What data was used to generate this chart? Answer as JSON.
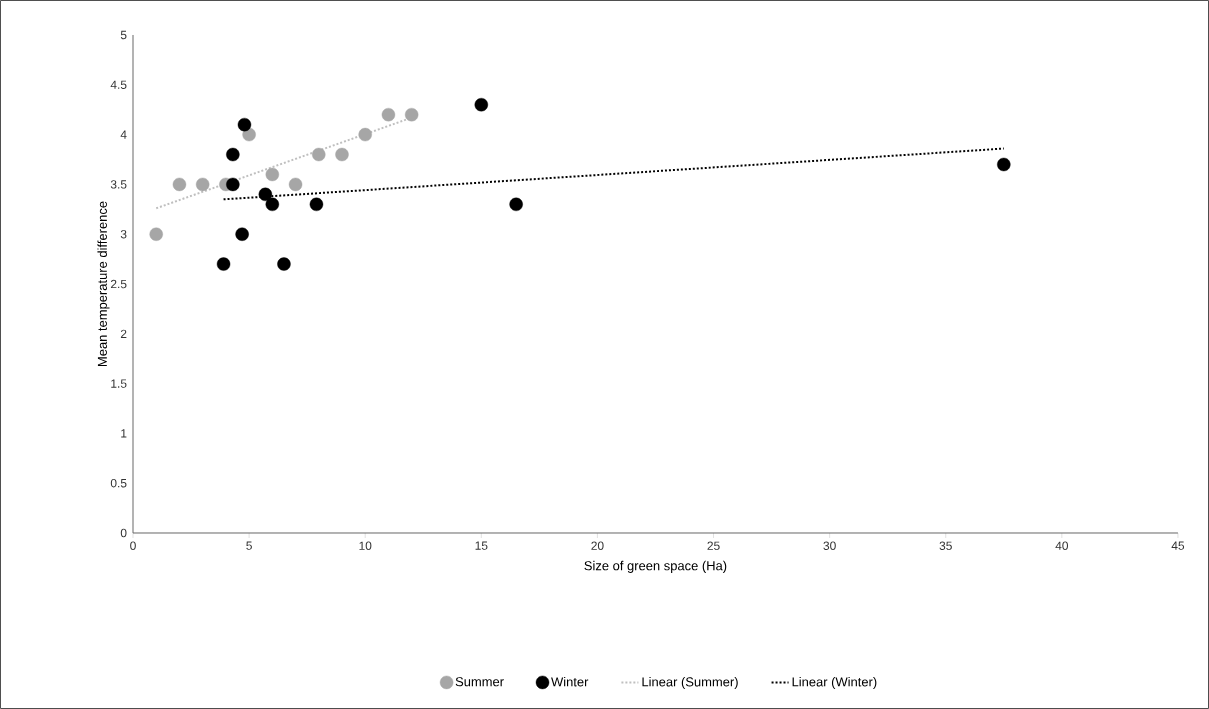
{
  "chart_data": {
    "type": "scatter",
    "xlabel": "Size of green space (Ha)",
    "ylabel": "Mean temperature difference",
    "xlim": [
      0,
      45
    ],
    "xticks": [
      0,
      5,
      10,
      15,
      20,
      25,
      30,
      35,
      40,
      45
    ],
    "ylim": [
      0,
      5
    ],
    "yticks": [
      0,
      0.5,
      1,
      1.5,
      2,
      2.5,
      3,
      3.5,
      4,
      4.5,
      5
    ],
    "grid": false,
    "legend": "bottom",
    "marker": "circle",
    "series": [
      {
        "name": "Summer",
        "color": "#a6a6a6",
        "x": [
          1,
          2,
          3,
          4,
          5,
          6,
          7,
          8,
          9,
          10,
          11,
          12
        ],
        "values": [
          3.0,
          3.5,
          3.5,
          3.5,
          4.0,
          3.6,
          3.5,
          3.8,
          3.8,
          4.0,
          4.2,
          4.2
        ]
      },
      {
        "name": "Winter",
        "color": "#000000",
        "x": [
          4.8,
          4.3,
          4.3,
          5.7,
          6,
          7.9,
          4.7,
          3.9,
          6.5,
          15,
          16.5,
          37.5
        ],
        "values": [
          4.1,
          3.8,
          3.5,
          3.4,
          3.3,
          3.3,
          3.0,
          2.7,
          2.7,
          4.3,
          3.3,
          3.7
        ]
      },
      {
        "name": "Linear (Summer)",
        "type": "line",
        "marker": "none",
        "line_style": "dotted",
        "color": "#bfbfbf",
        "x": [
          1,
          12
        ],
        "values": [
          3.26,
          4.17
        ]
      },
      {
        "name": "Linear (Winter)",
        "type": "line",
        "marker": "none",
        "line_style": "dotted",
        "color": "#000000",
        "x": [
          3.9,
          37.5
        ],
        "values": [
          3.35,
          3.86
        ]
      }
    ]
  }
}
